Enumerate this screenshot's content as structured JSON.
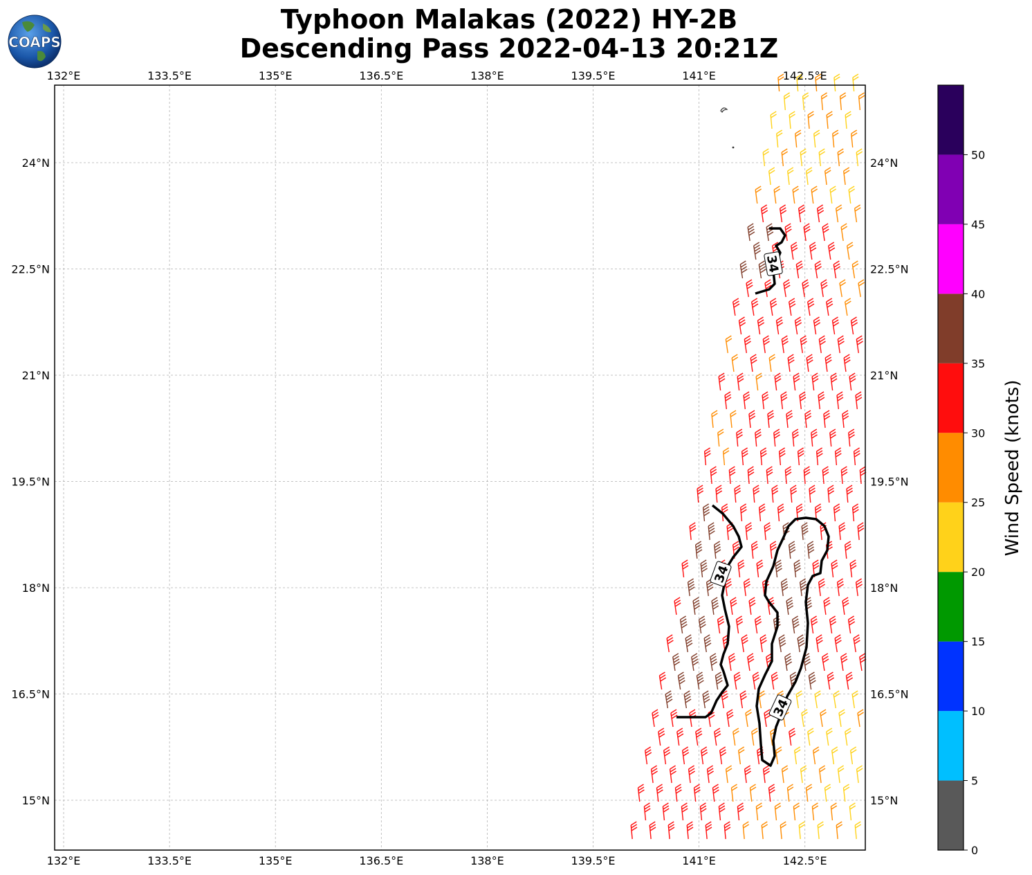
{
  "header": {
    "title_line1": "Typhoon Malakas (2022) HY-2B",
    "title_line2": "Descending Pass 2022-04-13 20:21Z",
    "logo_text": "COAPS"
  },
  "map": {
    "lon_ticks": [
      "132°E",
      "133.5°E",
      "135°E",
      "136.5°E",
      "138°E",
      "139.5°E",
      "141°E",
      "142.5°E"
    ],
    "lat_ticks": [
      "15°N",
      "16.5°N",
      "18°N",
      "19.5°N",
      "21°N",
      "22.5°N",
      "24°N"
    ],
    "contour_labels": [
      "34",
      "34",
      "34"
    ]
  },
  "colorbar": {
    "label": "Wind Speed (knots)",
    "ticks": [
      "0",
      "5",
      "10",
      "15",
      "20",
      "25",
      "30",
      "35",
      "40",
      "45",
      "50"
    ],
    "bins": [
      {
        "from": 0,
        "to": 5,
        "color": "#595959"
      },
      {
        "from": 5,
        "to": 10,
        "color": "#00bfff"
      },
      {
        "from": 10,
        "to": 15,
        "color": "#0033ff"
      },
      {
        "from": 15,
        "to": 20,
        "color": "#009900"
      },
      {
        "from": 20,
        "to": 25,
        "color": "#ffd21a"
      },
      {
        "from": 25,
        "to": 30,
        "color": "#ff8c00"
      },
      {
        "from": 30,
        "to": 35,
        "color": "#ff0d0d"
      },
      {
        "from": 35,
        "to": 40,
        "color": "#803d2a"
      },
      {
        "from": 40,
        "to": 45,
        "color": "#ff00ff"
      },
      {
        "from": 45,
        "to": 50,
        "color": "#8000b3"
      },
      {
        "from": 50,
        "to": 55,
        "color": "#2a005c"
      }
    ]
  }
}
